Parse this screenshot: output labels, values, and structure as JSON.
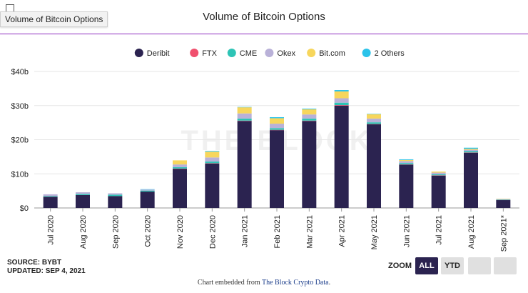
{
  "header": {
    "tooltip": "Volume of Bitcoin Options",
    "title": "Volume of Bitcoin Options"
  },
  "watermark": "THE BLOCK",
  "footer": {
    "source": "SOURCE: BYBT",
    "updated": "UPDATED: SEP 4, 2021",
    "embed_prefix": "Chart embedded from ",
    "embed_link": "The Block Crypto Data",
    "embed_suffix": "."
  },
  "zoom": {
    "label": "ZOOM",
    "buttons": [
      "ALL",
      "YTD",
      "",
      ""
    ],
    "active": "ALL"
  },
  "chart_data": {
    "type": "bar",
    "stacked": true,
    "title": "Volume of Bitcoin Options",
    "xlabel": "",
    "ylabel": "",
    "categories": [
      "Jul 2020",
      "Aug 2020",
      "Sep 2020",
      "Oct 2020",
      "Nov 2020",
      "Dec 2020",
      "Jan 2021",
      "Feb 2021",
      "Mar 2021",
      "Apr 2021",
      "May 2021",
      "Jun 2021",
      "Jul 2021",
      "Aug 2021",
      "Sep 2021*"
    ],
    "ylim": [
      0,
      40
    ],
    "yticks": [
      0,
      10,
      20,
      30,
      40
    ],
    "ytick_labels": [
      "$0",
      "$10b",
      "$20b",
      "$30b",
      "$40b"
    ],
    "legend_position": "top",
    "series": [
      {
        "name": "Deribit",
        "color": "#2b2350",
        "values": [
          3.3,
          3.8,
          3.5,
          4.8,
          11.5,
          13.0,
          25.5,
          22.8,
          25.5,
          30.0,
          24.5,
          12.7,
          9.5,
          16.2,
          2.3
        ]
      },
      {
        "name": "FTX",
        "color": "#f0506e",
        "values": [
          0.0,
          0.0,
          0.0,
          0.0,
          0.05,
          0.1,
          0.1,
          0.1,
          0.1,
          0.15,
          0.1,
          0.05,
          0.05,
          0.05,
          0.0
        ]
      },
      {
        "name": "CME",
        "color": "#2ec4b6",
        "values": [
          0.2,
          0.3,
          0.4,
          0.3,
          0.4,
          0.5,
          0.6,
          0.5,
          0.6,
          0.7,
          0.5,
          0.4,
          0.3,
          0.4,
          0.1
        ]
      },
      {
        "name": "Okex",
        "color": "#b9b1d8",
        "values": [
          0.5,
          0.5,
          0.4,
          0.3,
          0.8,
          1.2,
          1.5,
          1.3,
          1.2,
          1.3,
          1.1,
          0.6,
          0.5,
          0.4,
          0.2
        ]
      },
      {
        "name": "Bit.com",
        "color": "#f7d65c",
        "values": [
          0.0,
          0.0,
          0.0,
          0.0,
          1.2,
          1.7,
          1.8,
          1.6,
          1.5,
          2.0,
          1.3,
          0.3,
          0.3,
          0.3,
          0.1
        ]
      },
      {
        "name": "2 Others",
        "color": "#2bc3ea",
        "values": [
          0.0,
          0.0,
          0.0,
          0.1,
          0.0,
          0.2,
          0.1,
          0.3,
          0.2,
          0.4,
          0.1,
          0.2,
          0.0,
          0.3,
          0.0
        ]
      }
    ]
  }
}
